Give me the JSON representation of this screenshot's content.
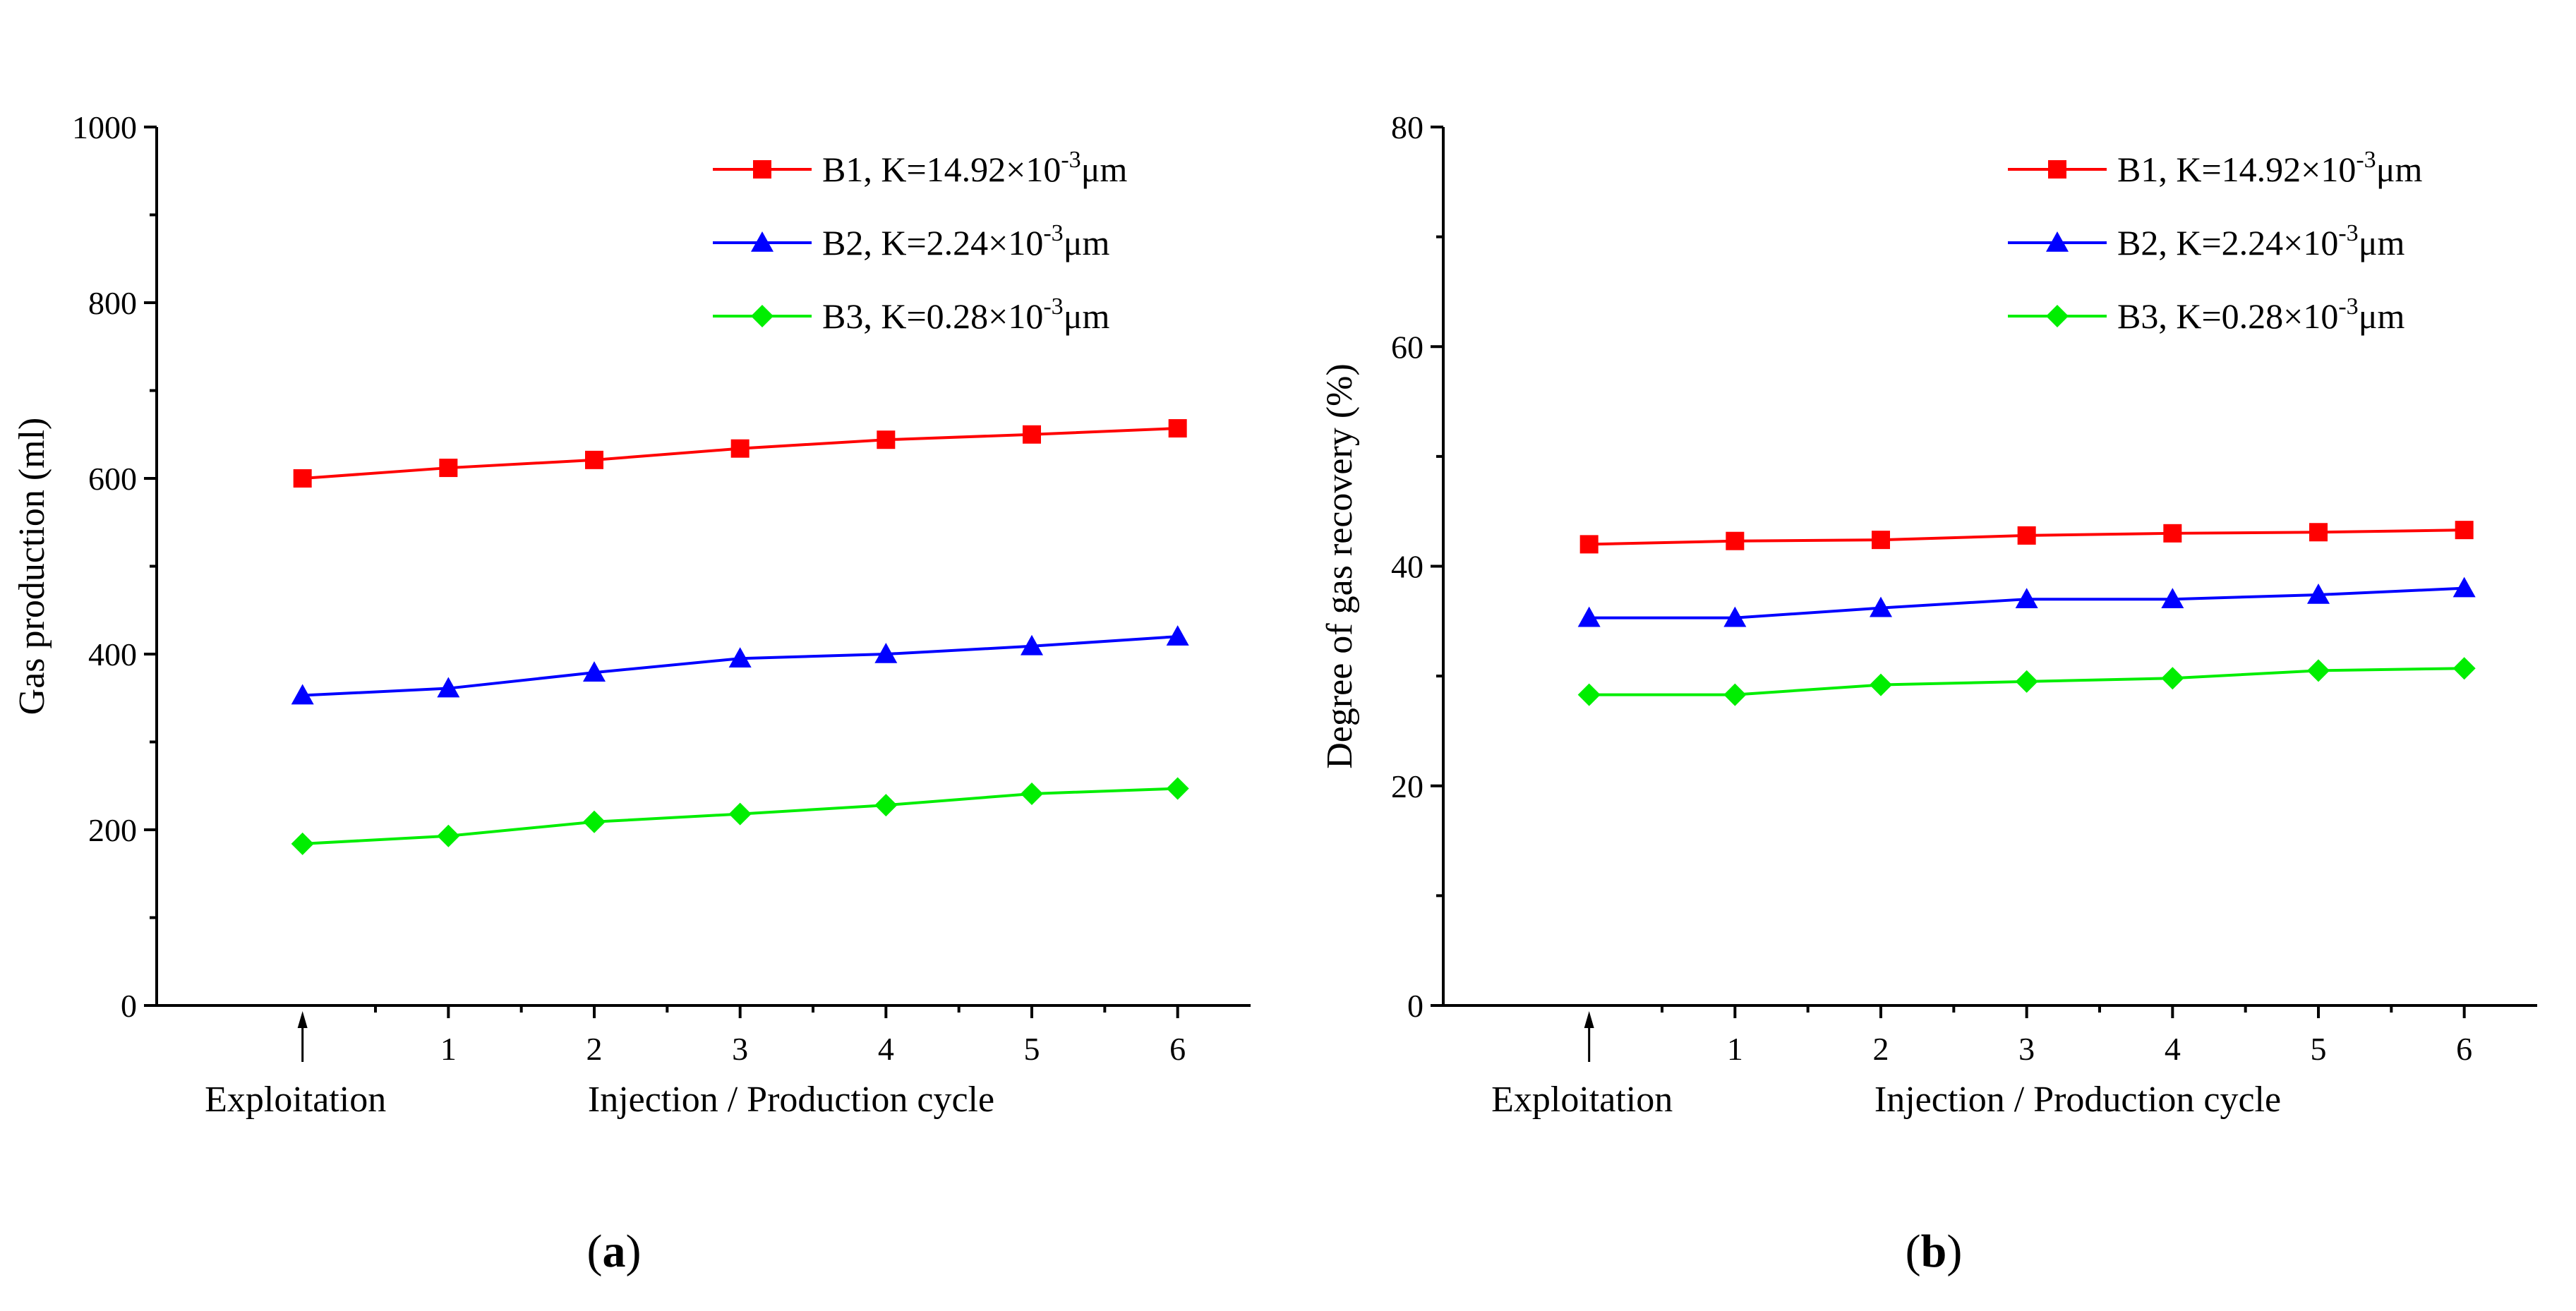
{
  "chart_data": [
    {
      "id": "a",
      "type": "line",
      "panel_label": "a",
      "title": "",
      "xlabel": "Injection / Production cycle",
      "x_start_label": "Exploitation",
      "ylabel": "Gas production (ml)",
      "x": [
        0,
        1,
        2,
        3,
        4,
        5,
        6
      ],
      "x_tick_labels": [
        "1",
        "2",
        "3",
        "4",
        "5",
        "6"
      ],
      "xlim": [
        -1,
        6.5
      ],
      "ylim": [
        0,
        1000
      ],
      "y_ticks": [
        0,
        200,
        400,
        600,
        800,
        1000
      ],
      "grid": false,
      "legend_position": "top-right",
      "series": [
        {
          "name": "B1",
          "legend_main": "B1, K=14.92×10",
          "legend_exp": "-3",
          "legend_unit": "μm",
          "color": "#ff0000",
          "marker": "square",
          "values": [
            600,
            612,
            621,
            634,
            644,
            650,
            657
          ]
        },
        {
          "name": "B2",
          "legend_main": "B2, K=2.24×10",
          "legend_exp": "-3",
          "legend_unit": "μm",
          "color": "#0000ff",
          "marker": "triangle",
          "values": [
            353,
            361,
            379,
            395,
            400,
            409,
            420
          ]
        },
        {
          "name": "B3",
          "legend_main": "B3, K=0.28×10",
          "legend_exp": "-3",
          "legend_unit": "μm",
          "color": "#00ee00",
          "marker": "diamond",
          "values": [
            184,
            193,
            209,
            218,
            228,
            241,
            247
          ]
        }
      ]
    },
    {
      "id": "b",
      "type": "line",
      "panel_label": "b",
      "title": "",
      "xlabel": "Injection / Production cycle",
      "x_start_label": "Exploitation",
      "ylabel": "Degree of gas recovery (%)",
      "x": [
        0,
        1,
        2,
        3,
        4,
        5,
        6
      ],
      "x_tick_labels": [
        "1",
        "2",
        "3",
        "4",
        "5",
        "6"
      ],
      "xlim": [
        -1,
        6.5
      ],
      "ylim": [
        0,
        80
      ],
      "y_ticks": [
        0,
        20,
        40,
        60,
        80
      ],
      "grid": false,
      "legend_position": "top-right",
      "series": [
        {
          "name": "B1",
          "legend_main": "B1, K=14.92×10",
          "legend_exp": "-3",
          "legend_unit": "μm",
          "color": "#ff0000",
          "marker": "square",
          "values": [
            42.0,
            42.3,
            42.4,
            42.8,
            43.0,
            43.1,
            43.3
          ]
        },
        {
          "name": "B2",
          "legend_main": "B2, K=2.24×10",
          "legend_exp": "-3",
          "legend_unit": "μm",
          "color": "#0000ff",
          "marker": "triangle",
          "values": [
            35.3,
            35.3,
            36.2,
            37.0,
            37.0,
            37.4,
            38.0
          ]
        },
        {
          "name": "B3",
          "legend_main": "B3, K=0.28×10",
          "legend_exp": "-3",
          "legend_unit": "μm",
          "color": "#00ee00",
          "marker": "diamond",
          "values": [
            28.3,
            28.3,
            29.2,
            29.5,
            29.8,
            30.5,
            30.7
          ]
        }
      ]
    }
  ]
}
